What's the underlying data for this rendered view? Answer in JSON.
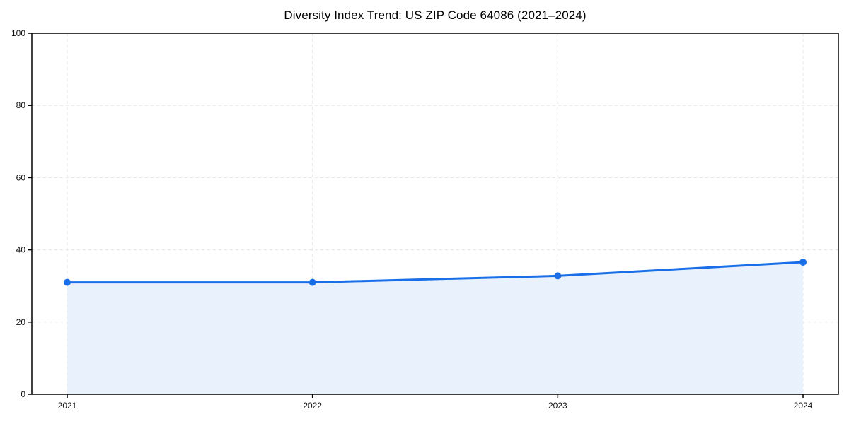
{
  "page": {
    "background": "#ffffff"
  },
  "chart_data": {
    "type": "line",
    "title": "Diversity Index Trend: US ZIP Code 64086 (2021–2024)",
    "x": [
      "2021",
      "2022",
      "2023",
      "2024"
    ],
    "series": [
      {
        "name": "Diversity Index",
        "values": [
          31.0,
          31.0,
          32.8,
          36.6
        ]
      }
    ],
    "xlabel": "",
    "ylabel": "",
    "ylim": [
      0,
      100
    ],
    "yticks": [
      0,
      20,
      40,
      60,
      80,
      100
    ],
    "grid": "dashed",
    "grid_color": "#e4e4e4",
    "legend": "none",
    "line_color": "#1a6fe8",
    "marker_color": "#1a6fe8",
    "fill_color": "#e9f1fc",
    "area_fill": true,
    "frame_color": "#000000",
    "tick_label_color": "#111111"
  }
}
